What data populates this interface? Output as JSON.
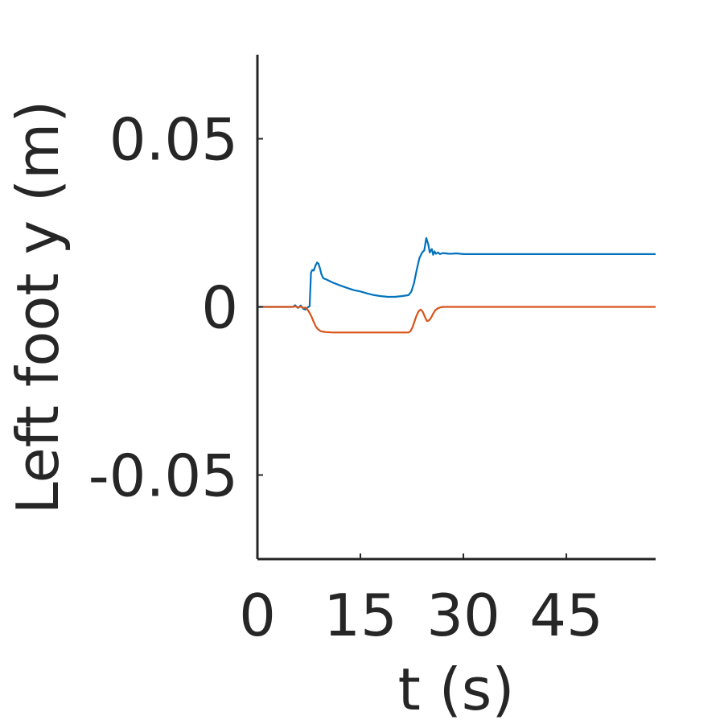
{
  "chart_data": {
    "type": "line",
    "title": "",
    "xlabel": "t (s)",
    "ylabel": "Left foot y (m)",
    "xlim": [
      0,
      58
    ],
    "ylim": [
      -0.075,
      0.075
    ],
    "xticks": [
      0,
      15,
      30,
      45
    ],
    "xtick_labels": [
      "0",
      "15",
      "30",
      "45"
    ],
    "yticks": [
      -0.05,
      0,
      0.05
    ],
    "ytick_labels": [
      "-0.05",
      "0",
      "0.05"
    ],
    "grid": false,
    "legend": null,
    "series": [
      {
        "color": "#0072BD",
        "x": [
          0,
          5.2,
          5.5,
          5.9,
          6.3,
          6.7,
          7.0,
          7.3,
          7.6,
          7.8,
          8.0,
          8.2,
          8.5,
          8.7,
          8.9,
          9.1,
          9.3,
          9.6,
          10.0,
          11,
          12,
          13,
          14,
          15,
          16,
          17,
          18,
          19,
          20,
          21,
          22,
          22.4,
          22.8,
          23.2,
          23.6,
          24.0,
          24.3,
          24.6,
          24.9,
          25.1,
          25.4,
          25.6,
          25.8,
          26.0,
          26.3,
          26.6,
          27,
          28,
          29,
          30,
          35,
          40,
          45,
          50,
          55,
          58
        ],
        "y": [
          0,
          0,
          0.0005,
          -0.0003,
          0.0004,
          -0.0006,
          -0.0008,
          -0.0002,
          0.0002,
          0.0102,
          0.011,
          0.0108,
          0.0125,
          0.0132,
          0.0128,
          0.0115,
          0.0098,
          0.0085,
          0.0082,
          0.0072,
          0.0064,
          0.0057,
          0.005,
          0.0046,
          0.004,
          0.0035,
          0.0032,
          0.003,
          0.003,
          0.0032,
          0.0035,
          0.0045,
          0.007,
          0.011,
          0.0145,
          0.0162,
          0.0168,
          0.0205,
          0.0185,
          0.0162,
          0.0172,
          0.0155,
          0.0165,
          0.0158,
          0.0162,
          0.0157,
          0.016,
          0.0158,
          0.0159,
          0.0157,
          0.0157,
          0.0157,
          0.0157,
          0.0157,
          0.0157,
          0.0157
        ]
      },
      {
        "color": "#D95319",
        "x": [
          0,
          5.2,
          5.5,
          5.9,
          6.3,
          6.7,
          7.0,
          7.3,
          7.6,
          7.9,
          8.2,
          8.5,
          8.8,
          9.2,
          9.6,
          10.0,
          11,
          13,
          15,
          17,
          19,
          21,
          22.0,
          22.3,
          22.6,
          22.9,
          23.2,
          23.5,
          23.8,
          24.1,
          24.4,
          24.7,
          25.0,
          25.3,
          25.6,
          25.9,
          26.3,
          26.7,
          27.1,
          27.5,
          28,
          29,
          30,
          35,
          40,
          45,
          50,
          55,
          58
        ],
        "y": [
          0,
          0,
          0.0002,
          -0.0002,
          0.0001,
          -0.0003,
          -0.0002,
          -0.0008,
          -0.0018,
          -0.003,
          -0.0045,
          -0.0058,
          -0.0066,
          -0.0072,
          -0.0074,
          -0.0075,
          -0.0076,
          -0.0076,
          -0.0076,
          -0.0076,
          -0.0076,
          -0.0076,
          -0.0076,
          -0.0072,
          -0.006,
          -0.0042,
          -0.0025,
          -0.0012,
          -0.0008,
          -0.0015,
          -0.003,
          -0.0042,
          -0.004,
          -0.0032,
          -0.002,
          -0.001,
          -0.0004,
          -0.0001,
          0,
          0,
          0,
          0,
          0,
          0,
          0,
          0,
          0,
          0,
          0
        ]
      }
    ]
  }
}
